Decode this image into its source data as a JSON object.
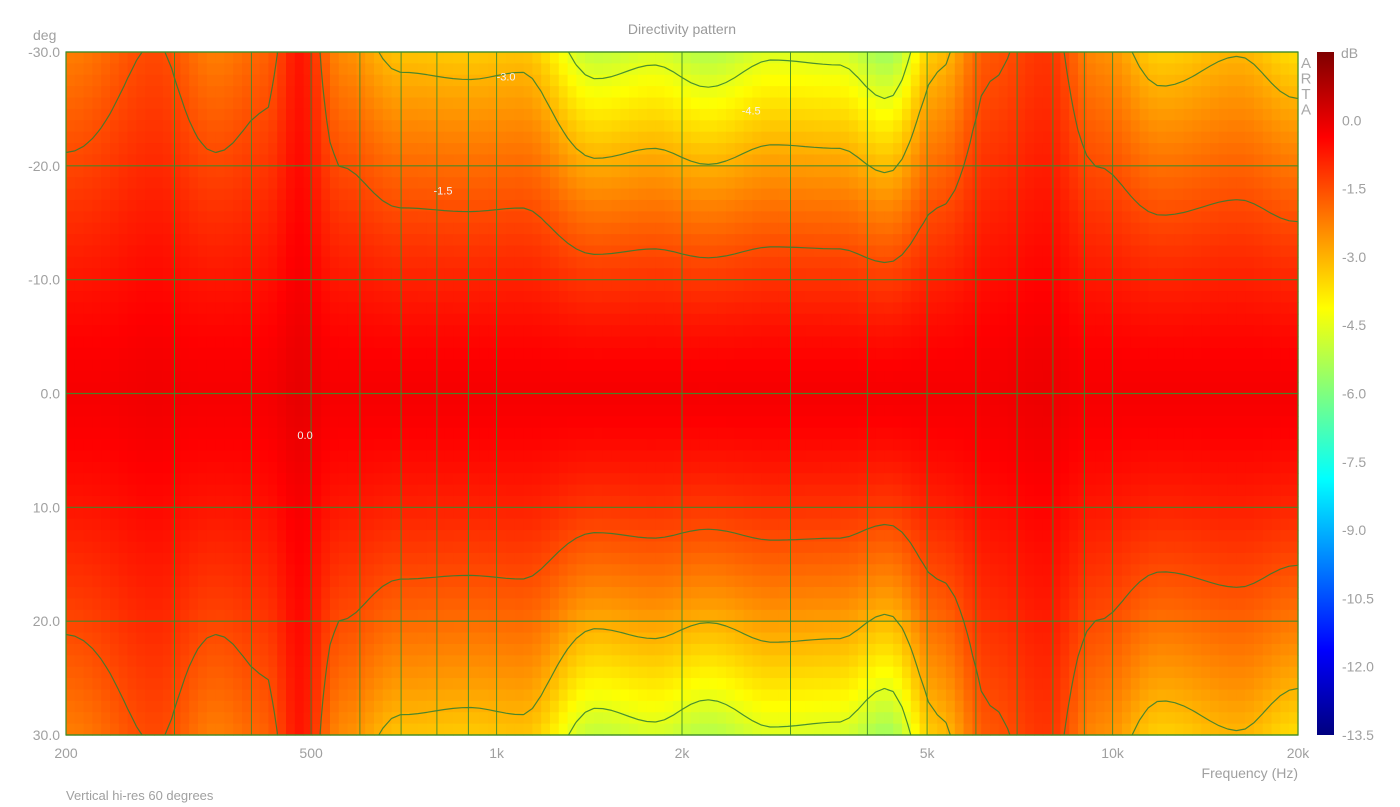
{
  "chart_data": {
    "type": "heatmap",
    "title": "Directivity pattern",
    "ylabel": "deg",
    "xlabel": "Frequency (Hz)",
    "footer": "Vertical hi-res 60 degrees",
    "brand": [
      "A",
      "R",
      "T",
      "A"
    ],
    "x_scale": "log",
    "xlim": [
      200,
      20000
    ],
    "ylim": [
      -30,
      30
    ],
    "x_ticks": [
      {
        "value": 200,
        "label": "200"
      },
      {
        "value": 500,
        "label": "500"
      },
      {
        "value": 1000,
        "label": "1k"
      },
      {
        "value": 2000,
        "label": "2k"
      },
      {
        "value": 5000,
        "label": "5k"
      },
      {
        "value": 10000,
        "label": "10k"
      },
      {
        "value": 20000,
        "label": "20k"
      }
    ],
    "y_ticks": [
      {
        "value": -30,
        "label": "-30.0"
      },
      {
        "value": -20,
        "label": "-20.0"
      },
      {
        "value": -10,
        "label": "-10.0"
      },
      {
        "value": 0,
        "label": "0.0"
      },
      {
        "value": 10,
        "label": "10.0"
      },
      {
        "value": 20,
        "label": "20.0"
      },
      {
        "value": 30,
        "label": "30.0"
      }
    ],
    "colorbar": {
      "label": "dB",
      "range": [
        -13.5,
        1.5
      ],
      "ticks": [
        {
          "value": 0,
          "label": "0.0"
        },
        {
          "value": -1.5,
          "label": "-1.5"
        },
        {
          "value": -3,
          "label": "-3.0"
        },
        {
          "value": -4.5,
          "label": "-4.5"
        },
        {
          "value": -6,
          "label": "-6.0"
        },
        {
          "value": -7.5,
          "label": "-7.5"
        },
        {
          "value": -9,
          "label": "-9.0"
        },
        {
          "value": -10.5,
          "label": "-10.5"
        },
        {
          "value": -12,
          "label": "-12.0"
        },
        {
          "value": -13.5,
          "label": "-13.5"
        }
      ],
      "colors": [
        "#00007f",
        "#0000ff",
        "#007fff",
        "#00ffff",
        "#7fff7f",
        "#ffff00",
        "#ff7f00",
        "#ff0000",
        "#7f0000"
      ]
    },
    "contour_levels": [
      0,
      -1.5,
      -3,
      -4.5
    ],
    "contour_labels": [
      {
        "text": "0.0",
        "x": 475,
        "y": 4
      },
      {
        "text": "-1.5",
        "x": 790,
        "y": -17.5
      },
      {
        "text": "-3.0",
        "x": 1000,
        "y": -27.5
      },
      {
        "text": "-4.5",
        "x": 2500,
        "y": -24.5
      }
    ],
    "series": [
      {
        "x": 200,
        "edge_db": -2.0
      },
      {
        "x": 280,
        "edge_db": -1.2
      },
      {
        "x": 350,
        "edge_db": -2.0
      },
      {
        "x": 420,
        "edge_db": -1.6
      },
      {
        "x": 480,
        "edge_db": -0.4
      },
      {
        "x": 560,
        "edge_db": -2.2
      },
      {
        "x": 700,
        "edge_db": -3.0
      },
      {
        "x": 900,
        "edge_db": -3.1
      },
      {
        "x": 1100,
        "edge_db": -3.0
      },
      {
        "x": 1450,
        "edge_db": -4.8
      },
      {
        "x": 1800,
        "edge_db": -4.5
      },
      {
        "x": 2200,
        "edge_db": -5.0
      },
      {
        "x": 2800,
        "edge_db": -4.4
      },
      {
        "x": 3600,
        "edge_db": -4.5
      },
      {
        "x": 4300,
        "edge_db": -5.3
      },
      {
        "x": 5200,
        "edge_db": -3.0
      },
      {
        "x": 6300,
        "edge_db": -1.4
      },
      {
        "x": 7800,
        "edge_db": -0.9
      },
      {
        "x": 9500,
        "edge_db": -2.2
      },
      {
        "x": 12000,
        "edge_db": -3.2
      },
      {
        "x": 16000,
        "edge_db": -2.8
      },
      {
        "x": 20000,
        "edge_db": -3.4
      }
    ]
  }
}
